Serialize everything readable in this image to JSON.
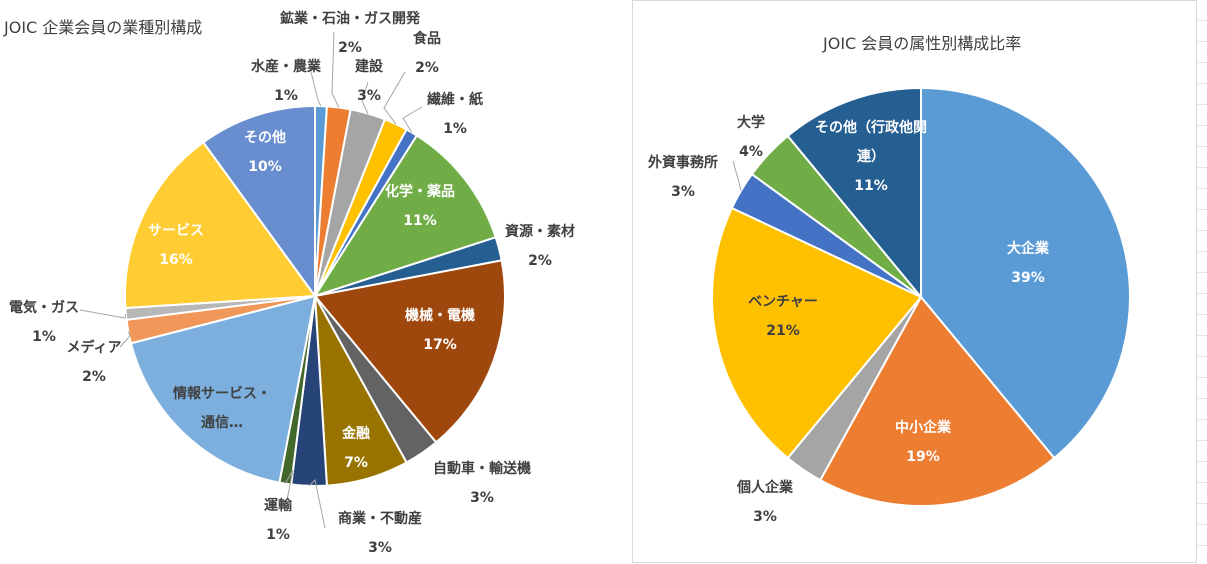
{
  "chart_data": [
    {
      "type": "pie",
      "title": "JOIC 企業会員の業種別構成",
      "slices": [
        {
          "label": "水産・農業",
          "value": 1,
          "pct": "1%",
          "color": "#5b9bd5"
        },
        {
          "label": "鉱業・石油・ガス開発",
          "value": 2,
          "pct": "2%",
          "color": "#ed7d31"
        },
        {
          "label": "建設",
          "value": 3,
          "pct": "3%",
          "color": "#a5a5a5"
        },
        {
          "label": "食品",
          "value": 2,
          "pct": "2%",
          "color": "#ffc000"
        },
        {
          "label": "繊維・紙",
          "value": 1,
          "pct": "1%",
          "color": "#4472c4"
        },
        {
          "label": "化学・薬品",
          "value": 11,
          "pct": "11%",
          "color": "#70ad47"
        },
        {
          "label": "資源・素材",
          "value": 2,
          "pct": "2%",
          "color": "#255e91"
        },
        {
          "label": "機械・電機",
          "value": 17,
          "pct": "17%",
          "color": "#9e480e"
        },
        {
          "label": "自動車・輸送機",
          "value": 3,
          "pct": "3%",
          "color": "#636363"
        },
        {
          "label": "金融",
          "value": 7,
          "pct": "7%",
          "color": "#997300"
        },
        {
          "label": "商業・不動産",
          "value": 3,
          "pct": "3%",
          "color": "#264478"
        },
        {
          "label": "運輸",
          "value": 1,
          "pct": "1%",
          "color": "#43682b"
        },
        {
          "label": "情報サービス・通信…",
          "value": 18,
          "pct": "",
          "color": "#7cafdd"
        },
        {
          "label": "メディア",
          "value": 2,
          "pct": "2%",
          "color": "#f1975a"
        },
        {
          "label": "電気・ガス",
          "value": 1,
          "pct": "1%",
          "color": "#b7b7b7"
        },
        {
          "label": "サービス",
          "value": 16,
          "pct": "16%",
          "color": "#ffcd33"
        },
        {
          "label": "その他",
          "value": 10,
          "pct": "10%",
          "color": "#698ed0"
        }
      ]
    },
    {
      "type": "pie",
      "title": "JOIC 会員の属性別構成比率",
      "slices": [
        {
          "label": "大企業",
          "value": 39,
          "pct": "39%",
          "color": "#5b9bd5"
        },
        {
          "label": "中小企業",
          "value": 19,
          "pct": "19%",
          "color": "#ed7d31"
        },
        {
          "label": "個人企業",
          "value": 3,
          "pct": "3%",
          "color": "#a5a5a5"
        },
        {
          "label": "ベンチャー",
          "value": 21,
          "pct": "21%",
          "color": "#ffc000"
        },
        {
          "label": "外資事務所",
          "value": 3,
          "pct": "3%",
          "color": "#4472c4"
        },
        {
          "label": "大学",
          "value": 4,
          "pct": "4%",
          "color": "#70ad47"
        },
        {
          "label": "その他（行政他関連）",
          "value": 11,
          "pct": "11%",
          "color": "#255e91"
        }
      ]
    }
  ]
}
